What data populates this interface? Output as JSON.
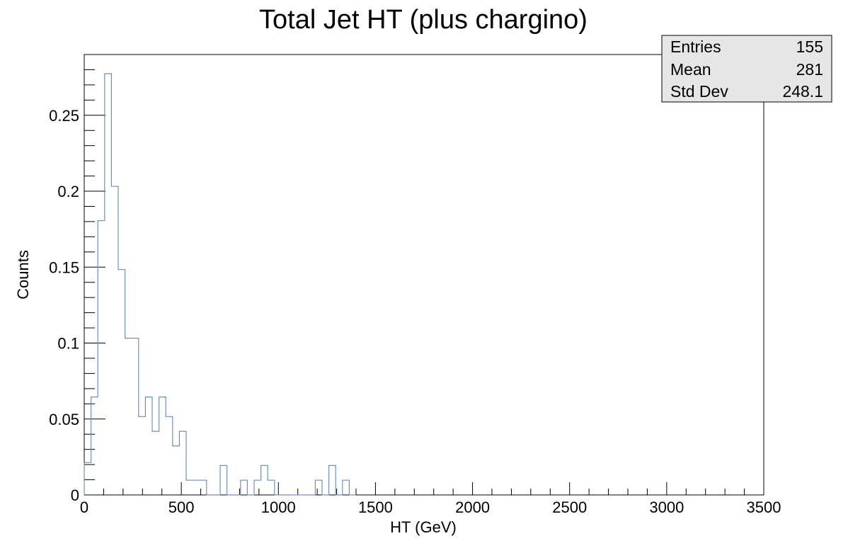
{
  "chart_data": {
    "type": "histogram",
    "title": "Total Jet HT (plus chargino)",
    "xlabel": "HT (GeV)",
    "ylabel": "Counts",
    "xlim": [
      0,
      3500
    ],
    "ylim": [
      0,
      0.29
    ],
    "x_ticks": [
      {
        "value": 0,
        "label": "0"
      },
      {
        "value": 500,
        "label": "500"
      },
      {
        "value": 1000,
        "label": "1000"
      },
      {
        "value": 1500,
        "label": "1500"
      },
      {
        "value": 2000,
        "label": "2000"
      },
      {
        "value": 2500,
        "label": "2500"
      },
      {
        "value": 3000,
        "label": "3000"
      },
      {
        "value": 3500,
        "label": "3500"
      }
    ],
    "y_ticks": [
      {
        "value": 0,
        "label": "0"
      },
      {
        "value": 0.05,
        "label": "0.05"
      },
      {
        "value": 0.1,
        "label": "0.1"
      },
      {
        "value": 0.15,
        "label": "0.15"
      },
      {
        "value": 0.2,
        "label": "0.2"
      },
      {
        "value": 0.25,
        "label": "0.25"
      }
    ],
    "bin_width": 35,
    "x": [
      0,
      35,
      70,
      105,
      140,
      175,
      210,
      245,
      280,
      315,
      350,
      385,
      420,
      455,
      490,
      525,
      560,
      595,
      630,
      665,
      700,
      735,
      770,
      805,
      840,
      875,
      910,
      945,
      980,
      1015,
      1050,
      1085,
      1120,
      1155,
      1190,
      1225,
      1260,
      1295,
      1330,
      1365
    ],
    "values": [
      0.0213,
      0.0645,
      0.1806,
      0.2774,
      0.2032,
      0.1484,
      0.1032,
      0.1032,
      0.0516,
      0.0645,
      0.0419,
      0.0645,
      0.0516,
      0.0323,
      0.0419,
      0.0097,
      0.0097,
      0.0097,
      0.0,
      0.0,
      0.0194,
      0.0,
      0.0,
      0.0097,
      0.0,
      0.0097,
      0.0194,
      0.0097,
      0.0,
      0.0,
      0.0,
      0.0,
      0.0,
      0.0,
      0.0097,
      0.0,
      0.0194,
      0.0,
      0.0097,
      0.0
    ],
    "line_color": "#6a8fc0",
    "stats": {
      "rows": [
        {
          "label": "Entries",
          "value": "155"
        },
        {
          "label": "Mean",
          "value": "281"
        },
        {
          "label": "Std Dev",
          "value": "248.1"
        }
      ]
    }
  }
}
